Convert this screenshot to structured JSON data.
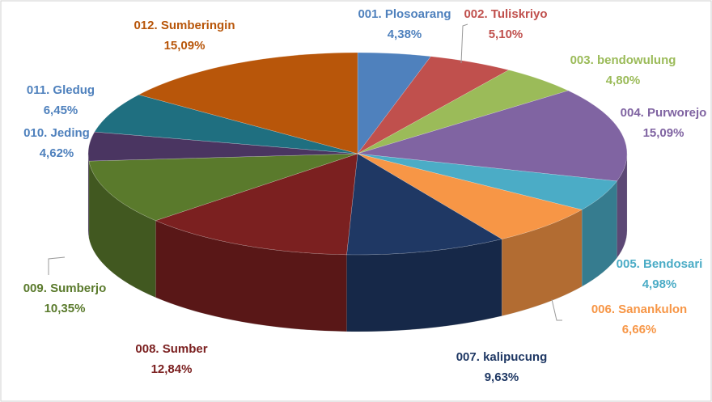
{
  "chart_data": {
    "type": "pie",
    "categories": [
      "001. Plosoarang",
      "002. Tuliskriyo",
      "003. bendowulung",
      "004. Purworejo",
      "005. Bendosari",
      "006. Sanankulon",
      "007. kalipucung",
      "008. Sumber",
      "009. Sumberjo",
      "010. Jeding",
      "011. Gledug",
      "012. Sumberingin"
    ],
    "values": [
      4.38,
      5.1,
      4.8,
      15.09,
      4.98,
      6.66,
      9.63,
      12.84,
      10.35,
      4.62,
      6.45,
      15.09
    ],
    "value_labels": [
      "4,38%",
      "5,10%",
      "4,80%",
      "15,09%",
      "4,98%",
      "6,66%",
      "9,63%",
      "12,84%",
      "10,35%",
      "4,62%",
      "6,45%",
      "15,09%"
    ],
    "colors": [
      "#4f81bd",
      "#c0504d",
      "#9bbb59",
      "#8064a2",
      "#4bacc6",
      "#f79646",
      "#1f3864",
      "#7b2020",
      "#5a7a2c",
      "#4a3561",
      "#1f6f80",
      "#b8560a"
    ]
  }
}
